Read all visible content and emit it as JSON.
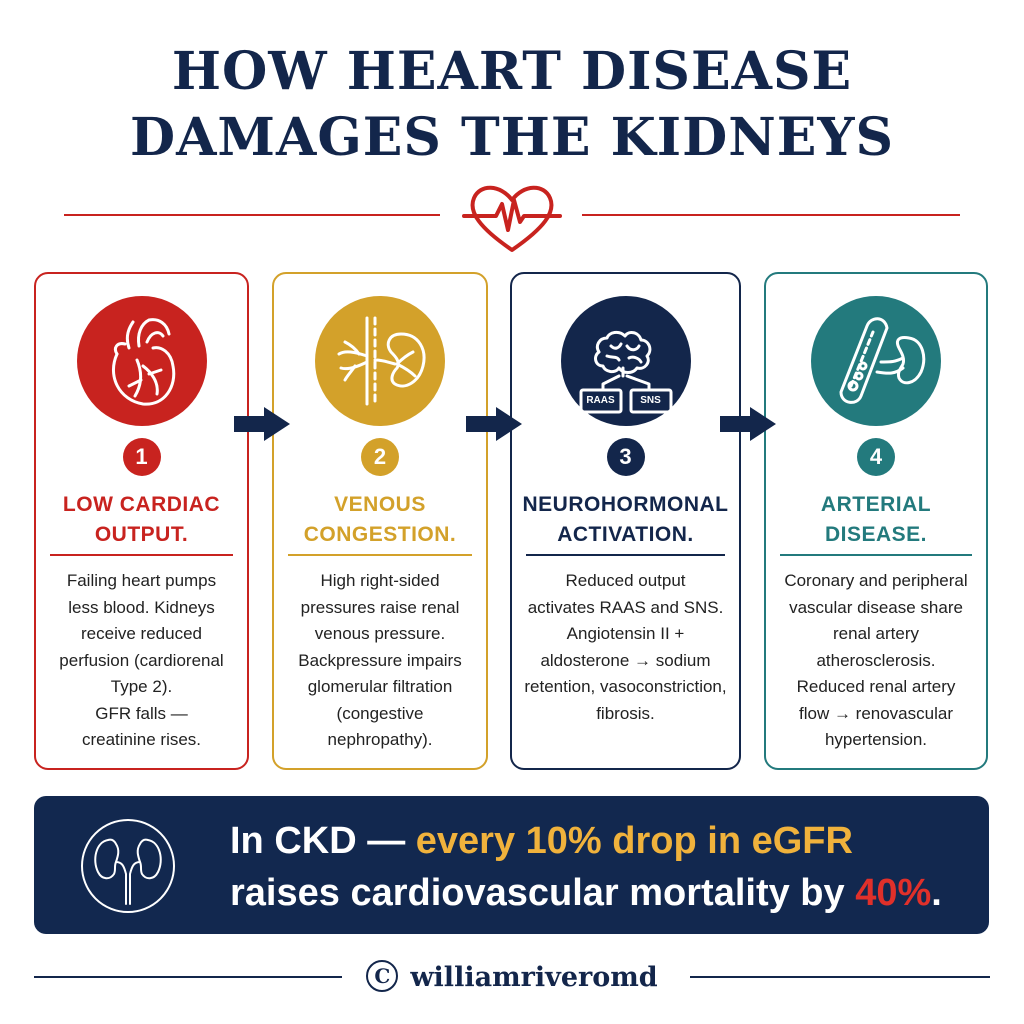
{
  "title": {
    "line1": "HOW HEART DISEASE",
    "line2": "DAMAGES THE KIDNEYS"
  },
  "colors": {
    "navy": "#13264b",
    "red": "#c8231f",
    "gold": "#d3a12a",
    "teal": "#237a7d",
    "banner_bg": "#12284f",
    "highlight_gold": "#f0b23c",
    "highlight_red": "#e0302a"
  },
  "steps": [
    {
      "number": "1",
      "heading": [
        "LOW CARDIAC",
        "OUTPUT."
      ],
      "icon": "heart-anatomy-icon",
      "body": [
        "Failing heart pumps",
        "less blood. Kidneys",
        "receive reduced",
        "perfusion (cardiorenal",
        "Type 2).",
        "GFR falls —",
        "creatinine rises."
      ]
    },
    {
      "number": "2",
      "heading": [
        "VENOUS",
        "CONGESTION."
      ],
      "icon": "vein-kidney-icon",
      "body": [
        "High right-sided",
        "pressures raise renal",
        "venous pressure.",
        "Backpressure impairs",
        "glomerular filtration",
        "(congestive",
        "nephropathy)."
      ]
    },
    {
      "number": "3",
      "heading": [
        "NEUROHORMONAL",
        "ACTIVATION."
      ],
      "icon": "brain-icon",
      "icon_labels": [
        "RAAS",
        "SNS"
      ],
      "body": [
        "Reduced output",
        "activates RAAS and SNS.",
        "Angiotensin II +",
        "aldosterone → sodium",
        "retention, vasoconstriction,",
        "fibrosis."
      ]
    },
    {
      "number": "4",
      "heading": [
        "ARTERIAL",
        "DISEASE."
      ],
      "icon": "artery-plaque-icon",
      "body": [
        "Coronary and peripheral",
        "vascular disease share",
        "renal artery",
        "atherosclerosis.",
        "Reduced renal artery",
        "flow → renovascular",
        "hypertension."
      ]
    }
  ],
  "banner": {
    "part1": "In CKD — ",
    "highlight1": "every 10% drop in eGFR",
    "part2": "raises cardiovascular mortality by ",
    "highlight2": "40%",
    "part3": "."
  },
  "footer": {
    "copyright_symbol": "C",
    "handle": "williamriveromd"
  }
}
